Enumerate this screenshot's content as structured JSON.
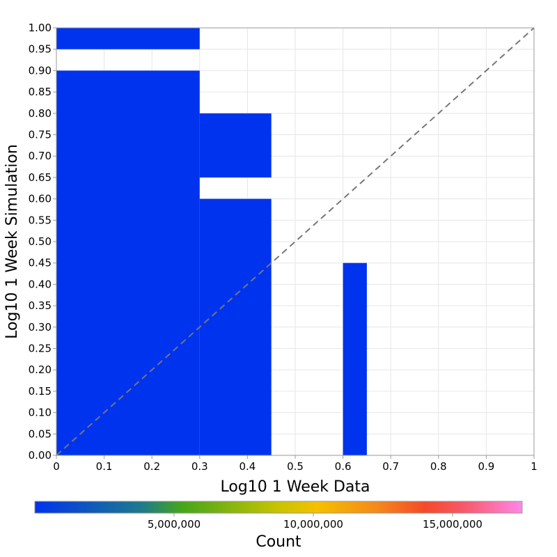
{
  "chart_data": {
    "type": "heatmap",
    "xlabel": "Log10 1 Week Data",
    "ylabel": "Log10 1 Week Simulation",
    "xlim": [
      0,
      1
    ],
    "ylim": [
      0,
      1
    ],
    "x_ticks": [
      0,
      0.1,
      0.2,
      0.3,
      0.4,
      0.5,
      0.6,
      0.7,
      0.8,
      0.9,
      1
    ],
    "x_tick_labels": [
      "0",
      "0.1",
      "0.2",
      "0.3",
      "0.4",
      "0.5",
      "0.6",
      "0.7",
      "0.8",
      "0.9",
      "1"
    ],
    "y_ticks": [
      0,
      0.05,
      0.1,
      0.15,
      0.2,
      0.25,
      0.3,
      0.35,
      0.4,
      0.45,
      0.5,
      0.55,
      0.6,
      0.65,
      0.7,
      0.75,
      0.8,
      0.85,
      0.9,
      0.95,
      1
    ],
    "y_tick_labels": [
      "0.00",
      "0.05",
      "0.10",
      "0.15",
      "0.20",
      "0.25",
      "0.30",
      "0.35",
      "0.40",
      "0.45",
      "0.50",
      "0.55",
      "0.60",
      "0.65",
      "0.70",
      "0.75",
      "0.80",
      "0.85",
      "0.90",
      "0.95",
      "1.00"
    ],
    "grid": true,
    "diagonal_reference_line": {
      "style": "dashed",
      "color": "#777777"
    },
    "cell_color": "#0033ee",
    "cells": [
      {
        "x0": 0,
        "x1": 0.3,
        "y0": 0.95,
        "y1": 1.0
      },
      {
        "x0": 0,
        "x1": 0.3,
        "y0": 0.0,
        "y1": 0.9
      },
      {
        "x0": 0.3,
        "x1": 0.45,
        "y0": 0.65,
        "y1": 0.8
      },
      {
        "x0": 0.3,
        "x1": 0.45,
        "y0": 0.0,
        "y1": 0.6
      },
      {
        "x0": 0.6,
        "x1": 0.65,
        "y0": 0.0,
        "y1": 0.45
      }
    ],
    "colorbar": {
      "label": "Count",
      "min": 0,
      "max": 17500000,
      "ticks": [
        5000000,
        10000000,
        15000000
      ],
      "tick_labels": [
        "5,000,000",
        "10,000,000",
        "15,000,000"
      ],
      "stops": [
        {
          "offset": 0,
          "color": "#0033ee"
        },
        {
          "offset": 0.22,
          "color": "#1f7a8c"
        },
        {
          "offset": 0.3,
          "color": "#44a51c"
        },
        {
          "offset": 0.5,
          "color": "#c8c400"
        },
        {
          "offset": 0.58,
          "color": "#f5c000"
        },
        {
          "offset": 0.7,
          "color": "#f58a1a"
        },
        {
          "offset": 0.8,
          "color": "#f54a2a"
        },
        {
          "offset": 0.88,
          "color": "#f85868"
        },
        {
          "offset": 1,
          "color": "#ff88e8"
        }
      ]
    }
  }
}
